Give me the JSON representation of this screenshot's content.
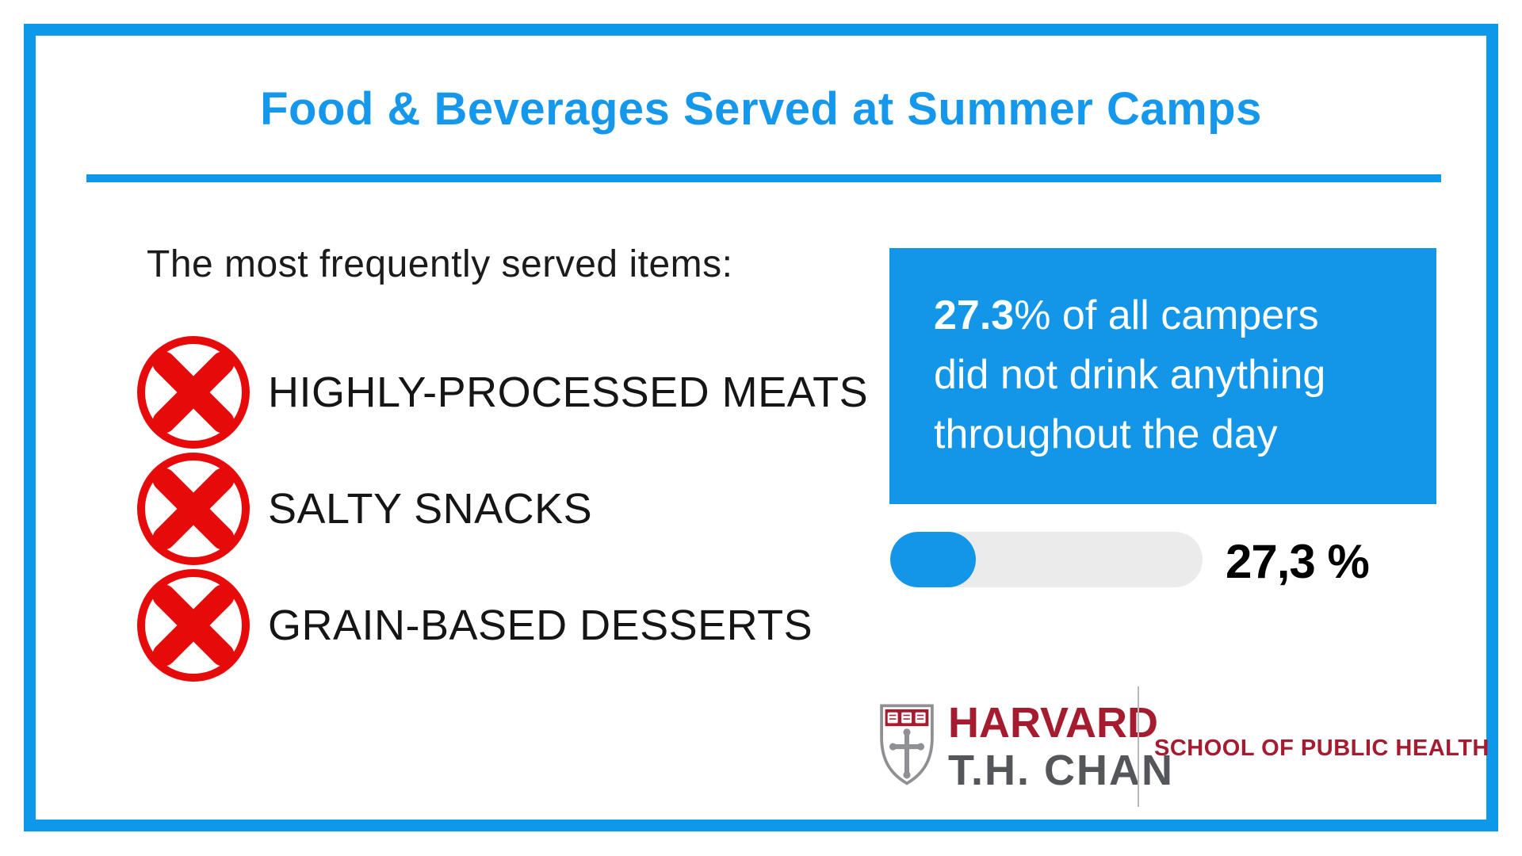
{
  "title": "Food & Beverages Served at Summer Camps",
  "left_panel": {
    "heading": "The most frequently served items:",
    "items": [
      {
        "label": "HIGHLY-PROCESSED MEATS",
        "icon": "x-circle-icon"
      },
      {
        "label": "SALTY SNACKS",
        "icon": "x-circle-icon"
      },
      {
        "label": "GRAIN-BASED DESSERTS",
        "icon": "x-circle-icon"
      }
    ]
  },
  "stat_card": {
    "line1_bold": "27.3",
    "line1_rest": "% of all campers",
    "line2": "did not drink anything",
    "line3": "throughout the day"
  },
  "progress": {
    "percent": 27.3,
    "value_label": "27,3 %"
  },
  "logo": {
    "wordmark_line1": "HARVARD",
    "wordmark_line2": "T.H. CHAN",
    "division": "SCHOOL OF PUBLIC HEALTH"
  },
  "colors": {
    "accent_blue": "#0D98EA",
    "stat_card_blue": "#1395E8",
    "icon_red": "#E60A0A",
    "harvard_crimson": "#A51C30",
    "chan_gray": "#55565A",
    "track_gray": "#EBEBEB",
    "text_black": "#151515"
  }
}
